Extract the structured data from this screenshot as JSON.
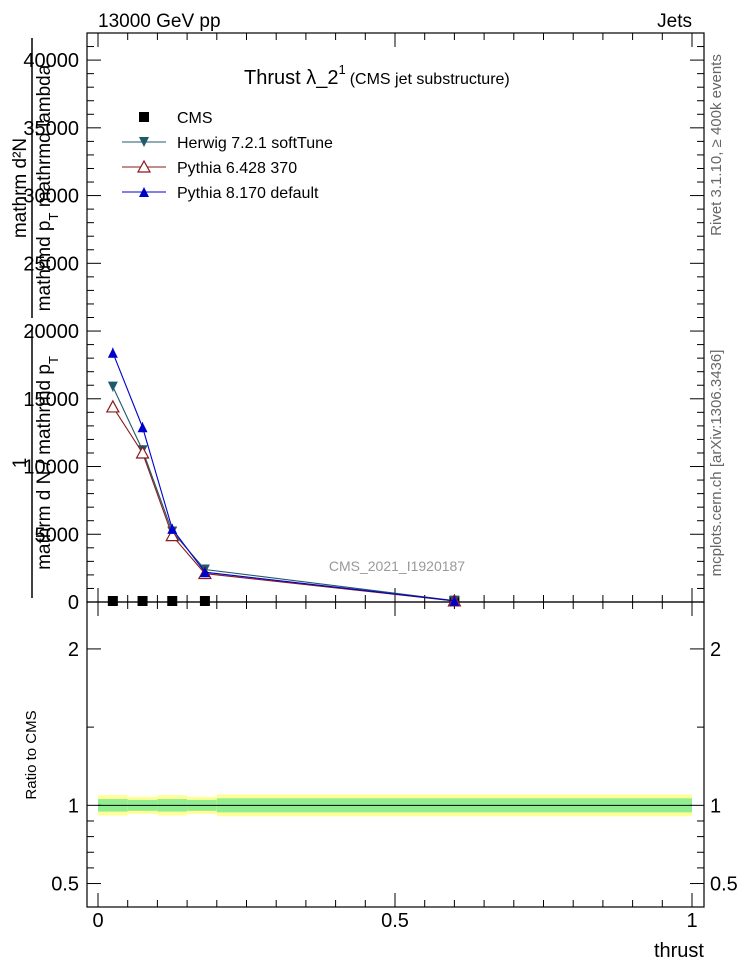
{
  "header": {
    "left": "13000 GeV pp",
    "right": "Jets"
  },
  "side_labels": {
    "rivet": "Rivet 3.1.10, ≥ 400k events",
    "mcplots": "mcplots.cern.ch [arXiv:1306.3436]"
  },
  "chart_data": {
    "type": "line",
    "title": "Thrust  λ_2",
    "title_sup": "1",
    "title_suffix": "(CMS jet substructure)",
    "watermark": "CMS_2021_I1920187",
    "ylabel_top": {
      "frac_num": "1",
      "frac_den": "mathrm d N / mathrmd p",
      "frac_den_sub": "T",
      "rhs_num": "mathrm d²N",
      "rhs_den": "mathrmd p",
      "rhs_den_sub": "T",
      "rhs_den_suffix": " mathrmd lambda"
    },
    "ylabel_ratio": "Ratio to CMS",
    "xlabel": "thrust",
    "xlim": [
      0,
      1
    ],
    "ylim": [
      0,
      42000
    ],
    "ratio_ylim": [
      0.35,
      2.3
    ],
    "x_ticks": [
      0,
      0.5,
      1
    ],
    "x_tick_labels": [
      "0",
      "0.5",
      "1"
    ],
    "y_ticks": [
      0,
      5000,
      10000,
      15000,
      20000,
      25000,
      30000,
      35000,
      40000
    ],
    "y_tick_labels": [
      "0",
      "5000",
      "10000",
      "15000",
      "20000",
      "25000",
      "30000",
      "35000",
      "40000"
    ],
    "ratio_ticks": [
      0.5,
      1,
      2
    ],
    "ratio_tick_labels": [
      "0.5",
      "1",
      "2"
    ],
    "x": [
      0.025,
      0.075,
      0.125,
      0.18,
      0.6
    ],
    "bin_edges": [
      0,
      0.05,
      0.1,
      0.15,
      0.2,
      1.0
    ],
    "series": [
      {
        "name": "CMS",
        "color": "#000000",
        "marker": "square",
        "values": [
          0,
          0,
          0,
          0,
          0
        ]
      },
      {
        "name": "Herwig 7.2.1 softTune",
        "color": "#1f5a6a",
        "marker": "triangle-down",
        "values": [
          15900,
          11200,
          5200,
          2400,
          100
        ]
      },
      {
        "name": "Pythia 6.428 370",
        "color": "#8b1a1a",
        "marker": "triangle-up-open",
        "values": [
          14400,
          11000,
          4900,
          2100,
          80
        ]
      },
      {
        "name": "Pythia 8.170 default",
        "color": "#0000cc",
        "marker": "triangle-up",
        "values": [
          18400,
          12900,
          5400,
          2200,
          90
        ]
      }
    ],
    "ratio_band_inner": [
      0.04,
      0.035,
      0.04,
      0.035,
      0.045
    ],
    "ratio_band_outer": [
      0.065,
      0.055,
      0.065,
      0.055,
      0.07
    ],
    "band_colors": {
      "inner": "#90ee90",
      "outer": "#ffff99"
    },
    "legend_position": "top-left"
  }
}
